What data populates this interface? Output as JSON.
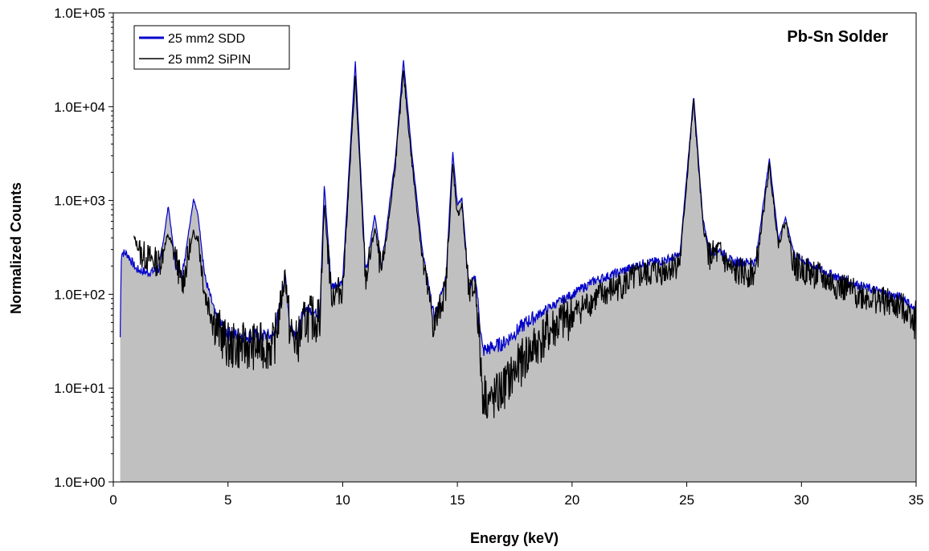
{
  "chart_data": {
    "type": "area",
    "title": "Pb-Sn Solder",
    "xlabel": "Energy (keV)",
    "ylabel": "Normalized Counts",
    "xlim": [
      0,
      35
    ],
    "ylim": [
      1,
      100000
    ],
    "y_scale": "log",
    "grid": false,
    "legend_position": "top-left",
    "x_ticks": [
      "0",
      "5",
      "10",
      "15",
      "20",
      "25",
      "30",
      "35"
    ],
    "x_tick_values": [
      0,
      5,
      10,
      15,
      20,
      25,
      30,
      35
    ],
    "y_ticks": [
      "1.0E+00",
      "1.0E+01",
      "1.0E+02",
      "1.0E+03",
      "1.0E+04",
      "1.0E+05"
    ],
    "y_tick_values": [
      1,
      10,
      100,
      1000,
      10000,
      100000
    ],
    "series": [
      {
        "name": "25 mm2 SDD",
        "color": "#0000cc",
        "fill": "#c0c0c0",
        "points": [
          [
            0.3,
            35
          ],
          [
            0.35,
            280
          ],
          [
            0.6,
            270
          ],
          [
            1.0,
            185
          ],
          [
            1.5,
            170
          ],
          [
            2.0,
            185
          ],
          [
            2.4,
            880
          ],
          [
            2.7,
            210
          ],
          [
            3.0,
            160
          ],
          [
            3.5,
            1050
          ],
          [
            3.7,
            680
          ],
          [
            4.0,
            150
          ],
          [
            4.5,
            55
          ],
          [
            5.0,
            38
          ],
          [
            6.0,
            36
          ],
          [
            7.0,
            36
          ],
          [
            7.5,
            160
          ],
          [
            7.7,
            45
          ],
          [
            8.0,
            38
          ],
          [
            8.4,
            72
          ],
          [
            9.0,
            60
          ],
          [
            9.2,
            1480
          ],
          [
            9.5,
            120
          ],
          [
            10.0,
            140
          ],
          [
            10.55,
            31000
          ],
          [
            11.0,
            170
          ],
          [
            11.4,
            720
          ],
          [
            11.7,
            190
          ],
          [
            12.1,
            1200
          ],
          [
            12.3,
            2800
          ],
          [
            12.65,
            32000
          ],
          [
            13.0,
            3500
          ],
          [
            13.5,
            260
          ],
          [
            14.0,
            55
          ],
          [
            14.5,
            150
          ],
          [
            14.8,
            3400
          ],
          [
            15.0,
            900
          ],
          [
            15.2,
            1050
          ],
          [
            15.5,
            120
          ],
          [
            15.8,
            150
          ],
          [
            16.1,
            25
          ],
          [
            17.0,
            30
          ],
          [
            18.0,
            50
          ],
          [
            19.0,
            72
          ],
          [
            20.0,
            100
          ],
          [
            21.0,
            140
          ],
          [
            22.0,
            170
          ],
          [
            23.0,
            210
          ],
          [
            24.0,
            230
          ],
          [
            24.7,
            260
          ],
          [
            25.3,
            13000
          ],
          [
            25.7,
            650
          ],
          [
            26.0,
            280
          ],
          [
            26.4,
            300
          ],
          [
            27.0,
            220
          ],
          [
            28.0,
            220
          ],
          [
            28.6,
            2800
          ],
          [
            29.0,
            380
          ],
          [
            29.3,
            650
          ],
          [
            29.7,
            260
          ],
          [
            30.5,
            200
          ],
          [
            31.5,
            155
          ],
          [
            32.5,
            125
          ],
          [
            33.5,
            105
          ],
          [
            34.5,
            90
          ],
          [
            35.0,
            65
          ]
        ]
      },
      {
        "name": "25 mm2 SiPIN",
        "color": "#000000",
        "points": [
          [
            0.9,
            400
          ],
          [
            1.2,
            270
          ],
          [
            1.6,
            240
          ],
          [
            2.0,
            215
          ],
          [
            2.4,
            430
          ],
          [
            2.7,
            260
          ],
          [
            3.0,
            125
          ],
          [
            3.5,
            450
          ],
          [
            3.7,
            400
          ],
          [
            4.0,
            100
          ],
          [
            4.5,
            45
          ],
          [
            5.0,
            28
          ],
          [
            6.0,
            28
          ],
          [
            7.0,
            28
          ],
          [
            7.5,
            170
          ],
          [
            7.7,
            40
          ],
          [
            8.0,
            30
          ],
          [
            8.4,
            55
          ],
          [
            9.0,
            55
          ],
          [
            9.2,
            920
          ],
          [
            9.5,
            100
          ],
          [
            10.0,
            115
          ],
          [
            10.55,
            21000
          ],
          [
            11.0,
            140
          ],
          [
            11.4,
            510
          ],
          [
            11.7,
            160
          ],
          [
            12.1,
            950
          ],
          [
            12.3,
            2500
          ],
          [
            12.65,
            23000
          ],
          [
            13.0,
            2800
          ],
          [
            13.5,
            210
          ],
          [
            14.0,
            45
          ],
          [
            14.5,
            120
          ],
          [
            14.8,
            2400
          ],
          [
            15.0,
            700
          ],
          [
            15.2,
            900
          ],
          [
            15.5,
            100
          ],
          [
            15.8,
            120
          ],
          [
            16.1,
            9
          ],
          [
            16.5,
            7
          ],
          [
            17.0,
            10
          ],
          [
            18.0,
            22
          ],
          [
            19.0,
            40
          ],
          [
            20.0,
            60
          ],
          [
            21.0,
            90
          ],
          [
            22.0,
            120
          ],
          [
            23.0,
            160
          ],
          [
            24.0,
            180
          ],
          [
            24.7,
            220
          ],
          [
            25.3,
            11500
          ],
          [
            25.7,
            550
          ],
          [
            26.0,
            250
          ],
          [
            26.4,
            280
          ],
          [
            27.0,
            170
          ],
          [
            28.0,
            170
          ],
          [
            28.6,
            2300
          ],
          [
            29.0,
            340
          ],
          [
            29.3,
            620
          ],
          [
            29.7,
            200
          ],
          [
            30.5,
            165
          ],
          [
            31.5,
            125
          ],
          [
            32.5,
            100
          ],
          [
            33.5,
            85
          ],
          [
            34.5,
            70
          ],
          [
            35.0,
            55
          ]
        ]
      }
    ]
  }
}
